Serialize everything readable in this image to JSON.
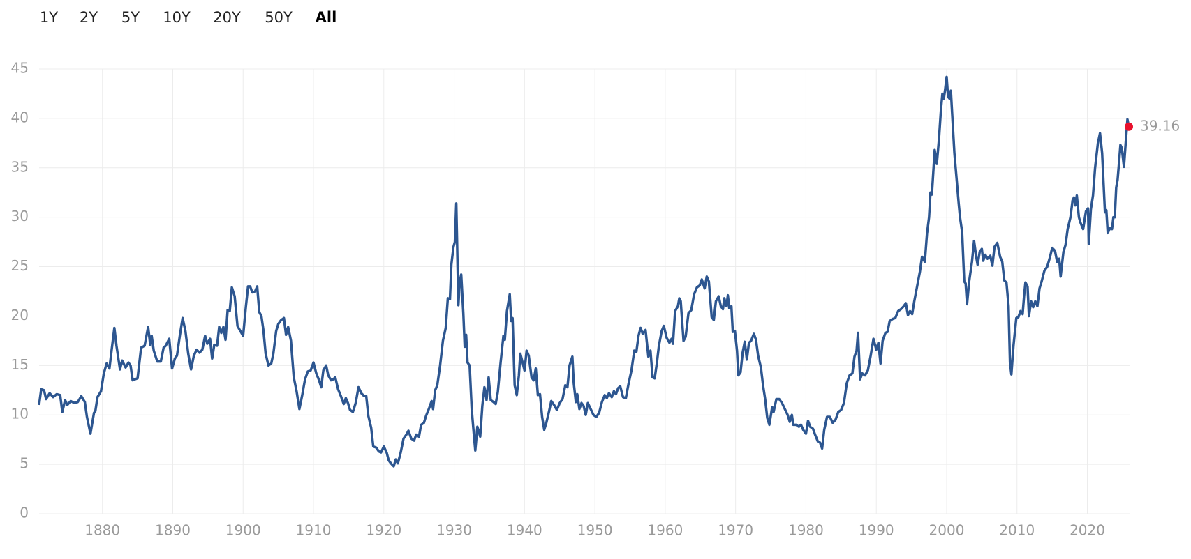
{
  "chart_data": {
    "type": "line",
    "range_buttons": [
      "1Y",
      "2Y",
      "5Y",
      "10Y",
      "20Y",
      "50Y",
      "All"
    ],
    "selected_range": 6,
    "xlim": [
      1871,
      2026
    ],
    "ylim": [
      0,
      45
    ],
    "xticks": [
      1880,
      1890,
      1900,
      1910,
      1920,
      1930,
      1940,
      1950,
      1960,
      1970,
      1980,
      1990,
      2000,
      2010,
      2020
    ],
    "yticks": [
      0,
      5,
      10,
      15,
      20,
      25,
      30,
      35,
      40,
      45
    ],
    "grid": true,
    "end_marker_color": "#e8112d",
    "x": [
      1871.0,
      1871.3,
      1871.7,
      1872.0,
      1872.5,
      1873,
      1873.5,
      1874,
      1874.3,
      1874.7,
      1875,
      1875.5,
      1876,
      1876.5,
      1877,
      1877.5,
      1877.8,
      1878.3,
      1878.8,
      1879,
      1879.3,
      1879.8,
      1880.2,
      1880.6,
      1881,
      1881.3,
      1881.7,
      1882,
      1882.5,
      1882.8,
      1883.3,
      1883.7,
      1884,
      1884.3,
      1884.6,
      1885,
      1885.5,
      1886,
      1886.5,
      1886.8,
      1887,
      1887.3,
      1887.8,
      1888.3,
      1888.7,
      1889,
      1889.5,
      1889.9,
      1890.3,
      1890.6,
      1891,
      1891.4,
      1891.8,
      1892.2,
      1892.6,
      1893,
      1893.4,
      1893.8,
      1894.2,
      1894.6,
      1894.9,
      1895.3,
      1895.6,
      1895.9,
      1896.3,
      1896.6,
      1896.9,
      1897.2,
      1897.5,
      1897.8,
      1898.1,
      1898.4,
      1898.8,
      1899.2,
      1899.6,
      1900,
      1900.4,
      1900.7,
      1901,
      1901.3,
      1901.7,
      1902,
      1902.3,
      1902.6,
      1902.9,
      1903.2,
      1903.6,
      1904,
      1904.3,
      1904.7,
      1905,
      1905.4,
      1905.8,
      1906.1,
      1906.4,
      1906.8,
      1907.2,
      1907.6,
      1908,
      1908.4,
      1908.8,
      1909.2,
      1909.6,
      1910,
      1910.4,
      1910.8,
      1911.1,
      1911.4,
      1911.8,
      1912.1,
      1912.5,
      1912.8,
      1913.1,
      1913.5,
      1913.9,
      1914.3,
      1914.6,
      1914.9,
      1915.2,
      1915.6,
      1916,
      1916.4,
      1916.8,
      1917.2,
      1917.5,
      1917.8,
      1918.2,
      1918.5,
      1918.9,
      1919.3,
      1919.6,
      1920,
      1920.4,
      1920.7,
      1921,
      1921.4,
      1921.7,
      1922,
      1922.4,
      1922.8,
      1923.2,
      1923.5,
      1923.9,
      1924.3,
      1924.6,
      1925,
      1925.3,
      1925.7,
      1926,
      1926.4,
      1926.8,
      1927,
      1927.3,
      1927.6,
      1928,
      1928.4,
      1928.8,
      1929.1,
      1929.4,
      1929.6,
      1929.9,
      1930.1,
      1930.3,
      1930.6,
      1930.8,
      1931,
      1931.3,
      1931.5,
      1931.7,
      1931.9,
      1932.2,
      1932.5,
      1932.8,
      1933.0,
      1933.3,
      1933.7,
      1934,
      1934.3,
      1934.6,
      1934.9,
      1935.2,
      1935.6,
      1935.9,
      1936.2,
      1936.6,
      1937,
      1937.2,
      1937.5,
      1937.9,
      1938.1,
      1938.3,
      1938.6,
      1938.9,
      1939.2,
      1939.4,
      1939.8,
      1940,
      1940.3,
      1940.6,
      1941,
      1941.3,
      1941.6,
      1941.9,
      1942.2,
      1942.5,
      1942.8,
      1943.1,
      1943.5,
      1943.8,
      1944.2,
      1944.6,
      1945,
      1945.4,
      1945.8,
      1946.1,
      1946.4,
      1946.8,
      1947,
      1947.3,
      1947.5,
      1947.8,
      1948.1,
      1948.4,
      1948.7,
      1949,
      1949.4,
      1949.8,
      1950.2,
      1950.6,
      1951,
      1951.4,
      1951.7,
      1952,
      1952.4,
      1952.7,
      1953,
      1953.3,
      1953.6,
      1954,
      1954.4,
      1954.8,
      1955.2,
      1955.6,
      1955.9,
      1956.2,
      1956.5,
      1956.8,
      1957.2,
      1957.6,
      1957.9,
      1958.2,
      1958.5,
      1958.8,
      1959.1,
      1959.5,
      1959.8,
      1960.2,
      1960.6,
      1960.9,
      1961.1,
      1961.4,
      1961.8,
      1962,
      1962.2,
      1962.6,
      1962.9,
      1963.3,
      1963.7,
      1964.1,
      1964.5,
      1964.9,
      1965.2,
      1965.6,
      1965.9,
      1966.2,
      1966.6,
      1966.9,
      1967.2,
      1967.6,
      1967.9,
      1968.2,
      1968.4,
      1968.7,
      1968.9,
      1969.1,
      1969.4,
      1969.6,
      1969.9,
      1970.2,
      1970.4,
      1970.7,
      1971,
      1971.3,
      1971.6,
      1971.9,
      1972.2,
      1972.6,
      1972.9,
      1973.2,
      1973.6,
      1973.9,
      1974.2,
      1974.5,
      1974.8,
      1975.2,
      1975.4,
      1975.8,
      1976.2,
      1976.6,
      1977,
      1977.4,
      1977.7,
      1978.0,
      1978.2,
      1978.6,
      1979,
      1979.3,
      1979.6,
      1980,
      1980.3,
      1980.6,
      1981,
      1981.3,
      1981.7,
      1982,
      1982.3,
      1982.6,
      1983,
      1983.4,
      1983.8,
      1984.2,
      1984.6,
      1985,
      1985.4,
      1985.8,
      1986.2,
      1986.6,
      1986.9,
      1987.2,
      1987.4,
      1987.7,
      1988,
      1988.4,
      1988.8,
      1989.2,
      1989.6,
      1990,
      1990.3,
      1990.6,
      1990.9,
      1991.3,
      1991.6,
      1991.9,
      1992.3,
      1992.7,
      1993.1,
      1993.5,
      1993.9,
      1994.2,
      1994.5,
      1994.8,
      1995.1,
      1995.4,
      1995.8,
      1996.2,
      1996.5,
      1996.9,
      1997.2,
      1997.5,
      1997.7,
      1997.9,
      1998.3,
      1998.6,
      1998.9,
      1999.2,
      1999.4,
      1999.6,
      1999.8,
      2000.0,
      2000.2,
      2000.4,
      2000.6,
      2000.9,
      2001.1,
      2001.4,
      2001.7,
      2001.9,
      2002.2,
      2002.5,
      2002.7,
      2002.9,
      2003.2,
      2003.6,
      2003.9,
      2004.2,
      2004.4,
      2004.7,
      2005,
      2005.2,
      2005.5,
      2005.8,
      2006.2,
      2006.5,
      2006.8,
      2007.2,
      2007.6,
      2007.9,
      2008.2,
      2008.5,
      2008.8,
      2009,
      2009.2,
      2009.5,
      2009.9,
      2010.2,
      2010.5,
      2010.8,
      2011.0,
      2011.2,
      2011.5,
      2011.7,
      2012,
      2012.3,
      2012.6,
      2012.9,
      2013.2,
      2013.5,
      2013.9,
      2014.3,
      2014.7,
      2015,
      2015.4,
      2015.7,
      2016.0,
      2016.2,
      2016.6,
      2016.9,
      2017.2,
      2017.6,
      2017.9,
      2018.1,
      2018.3,
      2018.5,
      2018.8,
      2019.0,
      2019.4,
      2019.8,
      2020.1,
      2020.2,
      2020.5,
      2020.8,
      2021.1,
      2021.5,
      2021.8,
      2022.1,
      2022.3,
      2022.5,
      2022.7,
      2022.9,
      2023.2,
      2023.5,
      2023.7,
      2023.9,
      2024.1,
      2024.3,
      2024.5,
      2024.7,
      2024.9,
      2025.2,
      2025.5,
      2025.7,
      2025.9
    ],
    "series": [
      {
        "color": "#2d5690",
        "values": [
          11.0,
          12.6,
          12.5,
          11.6,
          12.2,
          11.8,
          12.1,
          12.0,
          10.3,
          11.5,
          11.0,
          11.4,
          11.2,
          11.3,
          11.9,
          11.3,
          9.8,
          8.1,
          10.2,
          10.4,
          11.8,
          12.4,
          14.2,
          15.2,
          14.7,
          16.5,
          18.8,
          17.0,
          14.6,
          15.5,
          14.8,
          15.3,
          15.0,
          13.5,
          13.6,
          13.7,
          16.8,
          17.0,
          18.9,
          17.1,
          18.0,
          16.5,
          15.4,
          15.4,
          16.8,
          17.0,
          17.7,
          14.7,
          15.7,
          16.0,
          18.0,
          19.8,
          18.5,
          16.2,
          14.6,
          16.0,
          16.6,
          16.3,
          16.6,
          18.0,
          17.2,
          17.7,
          15.7,
          17.1,
          17.0,
          18.9,
          18.3,
          18.9,
          17.6,
          20.6,
          20.5,
          22.9,
          22.0,
          19.0,
          18.5,
          18.0,
          21.0,
          23.0,
          23.0,
          22.4,
          22.5,
          23.0,
          20.4,
          20.0,
          18.5,
          16.2,
          15.0,
          15.2,
          16.2,
          18.5,
          19.2,
          19.6,
          19.8,
          18.1,
          18.9,
          17.5,
          13.8,
          12.4,
          10.6,
          12.0,
          13.6,
          14.4,
          14.5,
          15.3,
          14.2,
          13.5,
          12.8,
          14.5,
          15.0,
          14.0,
          13.5,
          13.6,
          13.8,
          12.6,
          11.9,
          11.1,
          11.7,
          11.2,
          10.5,
          10.3,
          11.2,
          12.8,
          12.2,
          11.9,
          11.9,
          9.9,
          8.7,
          6.8,
          6.7,
          6.3,
          6.2,
          6.8,
          6.2,
          5.4,
          5.1,
          4.8,
          5.5,
          5.1,
          6.2,
          7.6,
          8.0,
          8.4,
          7.6,
          7.4,
          8.0,
          7.8,
          9.0,
          9.2,
          9.9,
          10.6,
          11.4,
          10.6,
          12.5,
          13.0,
          15.0,
          17.5,
          18.8,
          21.8,
          21.7,
          25.2,
          27.0,
          27.5,
          31.4,
          21.1,
          23.5,
          24.2,
          20.3,
          16.9,
          18.1,
          15.3,
          15.0,
          10.5,
          8.0,
          6.4,
          8.8,
          7.8,
          10.9,
          12.8,
          11.5,
          13.8,
          11.5,
          11.3,
          11.1,
          12.3,
          15.3,
          18.0,
          17.6,
          20.5,
          22.2,
          19.5,
          19.8,
          13.0,
          12.0,
          14.0,
          16.2,
          15.1,
          14.5,
          16.5,
          16.0,
          13.8,
          13.5,
          14.7,
          12.0,
          12.1,
          9.8,
          8.5,
          9.2,
          10.4,
          11.4,
          11.0,
          10.5,
          11.2,
          11.6,
          13.0,
          12.8,
          15.0,
          15.9,
          13.2,
          11.3,
          12.1,
          10.6,
          11.2,
          10.9,
          10.0,
          11.2,
          10.6,
          10.0,
          9.8,
          10.2,
          11.3,
          12.0,
          11.7,
          12.2,
          11.8,
          12.4,
          12.1,
          12.7,
          12.9,
          11.8,
          11.7,
          13.2,
          14.5,
          16.5,
          16.4,
          18.0,
          18.8,
          18.2,
          18.6,
          15.9,
          16.5,
          13.8,
          13.7,
          15.2,
          17.0,
          18.5,
          19.0,
          17.8,
          17.3,
          17.7,
          17.2,
          20.5,
          21.0,
          21.8,
          21.5,
          17.5,
          17.9,
          20.3,
          20.6,
          22.2,
          22.9,
          23.1,
          23.7,
          22.8,
          24.0,
          23.5,
          19.9,
          19.6,
          21.5,
          22.0,
          21.0,
          20.7,
          21.8,
          21.0,
          22.1,
          20.8,
          21.0,
          18.4,
          18.5,
          16.5,
          14.0,
          14.3,
          16.3,
          17.4,
          15.6,
          17.3,
          17.5,
          18.2,
          17.6,
          16.0,
          14.8,
          13.0,
          11.6,
          9.7,
          9.0,
          10.8,
          10.3,
          11.6,
          11.6,
          11.2,
          10.6,
          10.0,
          9.3,
          10.0,
          9.0,
          9.0,
          8.8,
          9.0,
          8.5,
          8.1,
          9.4,
          8.8,
          8.6,
          8.0,
          7.3,
          7.2,
          6.6,
          8.5,
          9.8,
          9.8,
          9.2,
          9.5,
          10.3,
          10.5,
          11.2,
          13.2,
          14.0,
          14.2,
          15.9,
          16.5,
          18.3,
          13.6,
          14.2,
          14.0,
          14.5,
          16.0,
          17.7,
          16.6,
          17.3,
          15.2,
          17.5,
          18.3,
          18.4,
          19.5,
          19.7,
          19.8,
          20.5,
          20.7,
          21.0,
          21.3,
          20.1,
          20.5,
          20.2,
          21.5,
          23.0,
          24.5,
          26.0,
          25.5,
          28.3,
          30.0,
          32.5,
          32.3,
          36.8,
          35.4,
          37.8,
          41.0,
          42.5,
          42.0,
          43.0,
          44.2,
          42.2,
          42.0,
          42.8,
          39.0,
          36.5,
          34.0,
          31.5,
          30.0,
          28.5,
          23.5,
          23.3,
          21.2,
          23.5,
          25.5,
          27.6,
          26.0,
          25.2,
          26.5,
          26.8,
          25.6,
          26.2,
          25.8,
          26.1,
          25.1,
          27.0,
          27.4,
          26.0,
          25.5,
          23.6,
          23.4,
          21.0,
          15.3,
          14.1,
          17.0,
          19.8,
          19.9,
          20.5,
          20.2,
          22.0,
          23.4,
          23.0,
          20.0,
          21.5,
          20.9,
          21.5,
          21.0,
          22.8,
          23.5,
          24.6,
          25.0,
          26.0,
          26.9,
          26.6,
          25.5,
          25.8,
          24.0,
          26.5,
          27.2,
          28.8,
          30.0,
          31.7,
          32.0,
          31.2,
          32.2,
          30.0,
          29.5,
          28.8,
          30.6,
          30.9,
          27.3,
          30.8,
          32.2,
          35.0,
          37.5,
          38.5,
          36.5,
          33.5,
          30.5,
          30.7,
          28.4,
          28.9,
          28.8,
          30.0,
          30.0,
          33.0,
          33.8,
          35.5,
          37.3,
          37.0,
          35.1,
          38.0,
          39.9,
          39.16
        ]
      }
    ]
  }
}
